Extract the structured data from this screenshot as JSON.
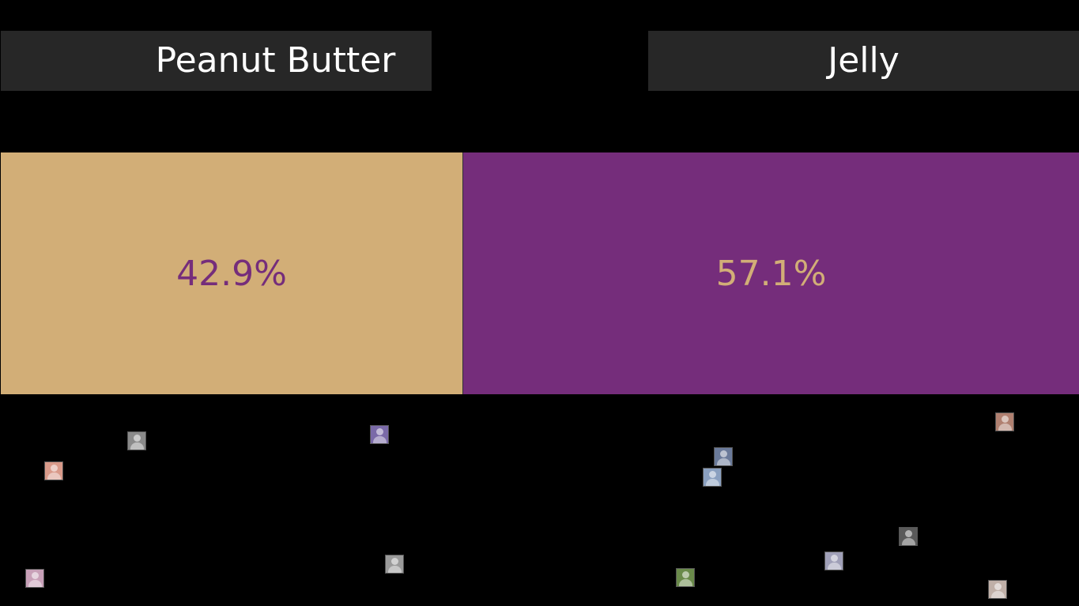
{
  "options": {
    "left": {
      "label": "Peanut Butter",
      "percent_label": "42.9%",
      "share": 0.429,
      "bar_color": "#d2ae77",
      "text_color": "#752d7b"
    },
    "right": {
      "label": "Jelly",
      "percent_label": "57.1%",
      "share": 0.571,
      "bar_color": "#752d7b",
      "text_color": "#d2ae77"
    }
  },
  "voters": [
    {
      "side": "left",
      "name": "voter-1",
      "tint": "#8a8a8a"
    },
    {
      "side": "left",
      "name": "voter-2",
      "tint": "#7a6aa8"
    },
    {
      "side": "left",
      "name": "voter-3",
      "tint": "#d99a8a"
    },
    {
      "side": "left",
      "name": "voter-4",
      "tint": "#c8a0b8"
    },
    {
      "side": "left",
      "name": "voter-5",
      "tint": "#9a9a9a"
    },
    {
      "side": "right",
      "name": "voter-6",
      "tint": "#b08070"
    },
    {
      "side": "right",
      "name": "voter-7",
      "tint": "#6a7a9a"
    },
    {
      "side": "right",
      "name": "voter-8",
      "tint": "#8aa0c0"
    },
    {
      "side": "right",
      "name": "voter-9",
      "tint": "#5a5a5a"
    },
    {
      "side": "right",
      "name": "voter-10",
      "tint": "#a0a0b8"
    },
    {
      "side": "right",
      "name": "voter-11",
      "tint": "#6a8a4a"
    },
    {
      "side": "right",
      "name": "voter-12",
      "tint": "#c0b0a8"
    }
  ]
}
